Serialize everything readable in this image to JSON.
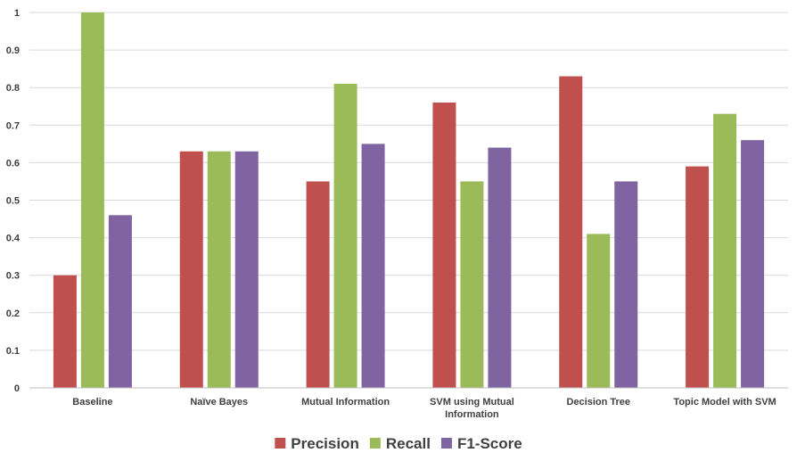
{
  "chart_data": {
    "type": "bar",
    "title": "",
    "xlabel": "",
    "ylabel": "",
    "ylim": [
      0,
      1
    ],
    "yticks": [
      0,
      0.1,
      0.2,
      0.3,
      0.4,
      0.5,
      0.6,
      0.7,
      0.8,
      0.9,
      1
    ],
    "ytick_labels": [
      "0",
      "0.1",
      "0.2",
      "0.3",
      "0.4",
      "0.5",
      "0.6",
      "0.7",
      "0.8",
      "0.9",
      "1"
    ],
    "grid": true,
    "legend_position": "bottom",
    "categories": [
      [
        "Baseline"
      ],
      [
        "Naïve Bayes"
      ],
      [
        "Mutual Information"
      ],
      [
        "SVM using Mutual",
        "Information"
      ],
      [
        "Decision Tree"
      ],
      [
        "Topic Model with SVM"
      ]
    ],
    "series": [
      {
        "name": "Precision",
        "color": "#c0504d",
        "values": [
          0.3,
          0.63,
          0.55,
          0.76,
          0.83,
          0.59
        ]
      },
      {
        "name": "Recall",
        "color": "#9bbb59",
        "values": [
          1.0,
          0.63,
          0.81,
          0.55,
          0.41,
          0.73
        ]
      },
      {
        "name": "F1-Score",
        "color": "#8064a2",
        "values": [
          0.46,
          0.63,
          0.65,
          0.64,
          0.55,
          0.66
        ]
      }
    ]
  }
}
